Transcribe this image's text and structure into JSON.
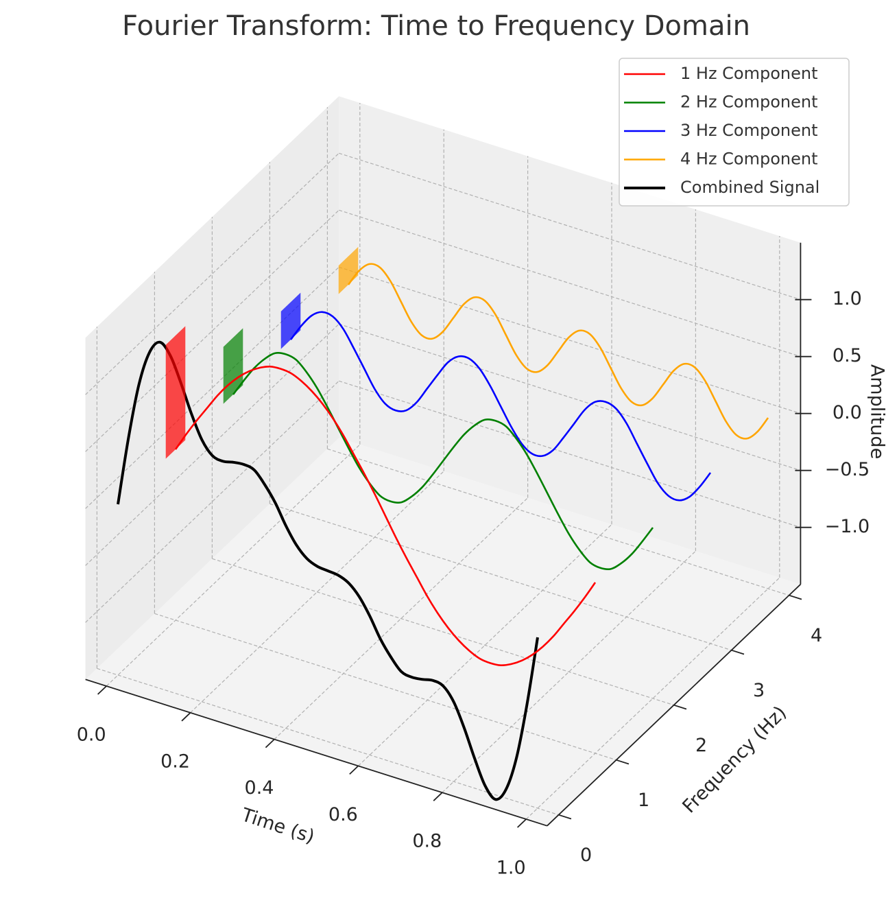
{
  "chart_data": {
    "type": "line3d",
    "title": "Fourier Transform: Time to Frequency Domain",
    "x_label": "Time (s)",
    "y_label": "Frequency (Hz)",
    "z_label": "Amplitude",
    "x": [
      0,
      0.025,
      0.05,
      0.075,
      0.1,
      0.125,
      0.15,
      0.175,
      0.2,
      0.225,
      0.25,
      0.275,
      0.3,
      0.325,
      0.35,
      0.375,
      0.4,
      0.425,
      0.45,
      0.475,
      0.5,
      0.525,
      0.55,
      0.575,
      0.6,
      0.625,
      0.65,
      0.675,
      0.7,
      0.725,
      0.75,
      0.775,
      0.8,
      0.825,
      0.85,
      0.875,
      0.9,
      0.925,
      0.95,
      0.975,
      1
    ],
    "series": [
      {
        "name": "1 Hz Component",
        "color": "#ff0000",
        "frequency": 1,
        "amplitude": 1,
        "values": [
          0,
          0.16,
          0.31,
          0.45,
          0.59,
          0.71,
          0.81,
          0.89,
          0.95,
          0.99,
          1,
          0.99,
          0.95,
          0.89,
          0.81,
          0.71,
          0.59,
          0.45,
          0.31,
          0.16,
          0,
          -0.16,
          -0.31,
          -0.45,
          -0.59,
          -0.71,
          -0.81,
          -0.89,
          -0.95,
          -0.99,
          -1,
          -0.99,
          -0.95,
          -0.89,
          -0.81,
          -0.71,
          -0.59,
          -0.45,
          -0.31,
          -0.16,
          0
        ]
      },
      {
        "name": "2 Hz Component",
        "color": "#008000",
        "frequency": 2,
        "amplitude": 0.5,
        "values": [
          0,
          0.15,
          0.29,
          0.4,
          0.48,
          0.5,
          0.48,
          0.4,
          0.29,
          0.15,
          0,
          -0.15,
          -0.29,
          -0.4,
          -0.48,
          -0.5,
          -0.48,
          -0.4,
          -0.29,
          -0.15,
          0,
          0.15,
          0.29,
          0.4,
          0.48,
          0.5,
          0.48,
          0.4,
          0.29,
          0.15,
          0,
          -0.15,
          -0.29,
          -0.4,
          -0.48,
          -0.5,
          -0.48,
          -0.4,
          -0.29,
          -0.15,
          0
        ]
      },
      {
        "name": "3 Hz Component",
        "color": "#0000ff",
        "frequency": 3,
        "amplitude": 0.33,
        "values": [
          0,
          0.15,
          0.27,
          0.33,
          0.32,
          0.24,
          0.1,
          -0.05,
          -0.2,
          -0.3,
          -0.33,
          -0.3,
          -0.2,
          -0.05,
          0.1,
          0.24,
          0.32,
          0.33,
          0.27,
          0.15,
          0,
          -0.15,
          -0.27,
          -0.33,
          -0.32,
          -0.24,
          -0.1,
          0.05,
          0.2,
          0.3,
          0.33,
          0.3,
          0.2,
          0.05,
          -0.1,
          -0.24,
          -0.32,
          -0.33,
          -0.27,
          -0.15,
          0
        ]
      },
      {
        "name": "4 Hz Component",
        "color": "#ffa500",
        "frequency": 4,
        "amplitude": 0.25,
        "values": [
          0,
          0.15,
          0.24,
          0.24,
          0.15,
          0,
          -0.15,
          -0.24,
          -0.24,
          -0.15,
          0,
          0.15,
          0.24,
          0.24,
          0.15,
          0,
          -0.15,
          -0.24,
          -0.24,
          -0.15,
          0,
          0.15,
          0.24,
          0.24,
          0.15,
          0,
          -0.15,
          -0.24,
          -0.24,
          -0.15,
          0,
          0.15,
          0.24,
          0.24,
          0.15,
          0,
          -0.15,
          -0.24,
          -0.24,
          -0.15,
          0
        ]
      },
      {
        "name": "Combined Signal",
        "color": "#000000",
        "frequency": 0,
        "values": [
          0,
          0.61,
          1.11,
          1.42,
          1.54,
          1.45,
          1.24,
          1,
          0.8,
          0.69,
          0.67,
          0.69,
          0.7,
          0.68,
          0.58,
          0.45,
          0.28,
          0.14,
          0.05,
          0.01,
          0,
          -0.01,
          -0.05,
          -0.14,
          -0.28,
          -0.45,
          -0.58,
          -0.68,
          -0.7,
          -0.69,
          -0.67,
          -0.69,
          -0.8,
          -1,
          -1.24,
          -1.45,
          -1.54,
          -1.42,
          -1.11,
          -0.61,
          0
        ]
      }
    ],
    "xlim": [
      -0.05,
      1.05
    ],
    "ylim": [
      -0.2,
      4.2
    ],
    "zlim": [
      -1.5,
      1.5
    ],
    "xticks": [
      {
        "value": 0,
        "label": "0.0"
      },
      0.2,
      0.4,
      0.6,
      0.8,
      {
        "value": 1,
        "label": "1.0"
      }
    ],
    "yticks": [
      0,
      1,
      2,
      3,
      4
    ],
    "zticks": [
      {
        "value": -1,
        "label": "−1.0"
      },
      {
        "value": -0.5,
        "label": "−0.5"
      },
      {
        "value": 0,
        "label": "0.0"
      },
      0.5,
      {
        "value": 1,
        "label": "1.0"
      }
    ],
    "grid": true,
    "legend": "upper right"
  }
}
